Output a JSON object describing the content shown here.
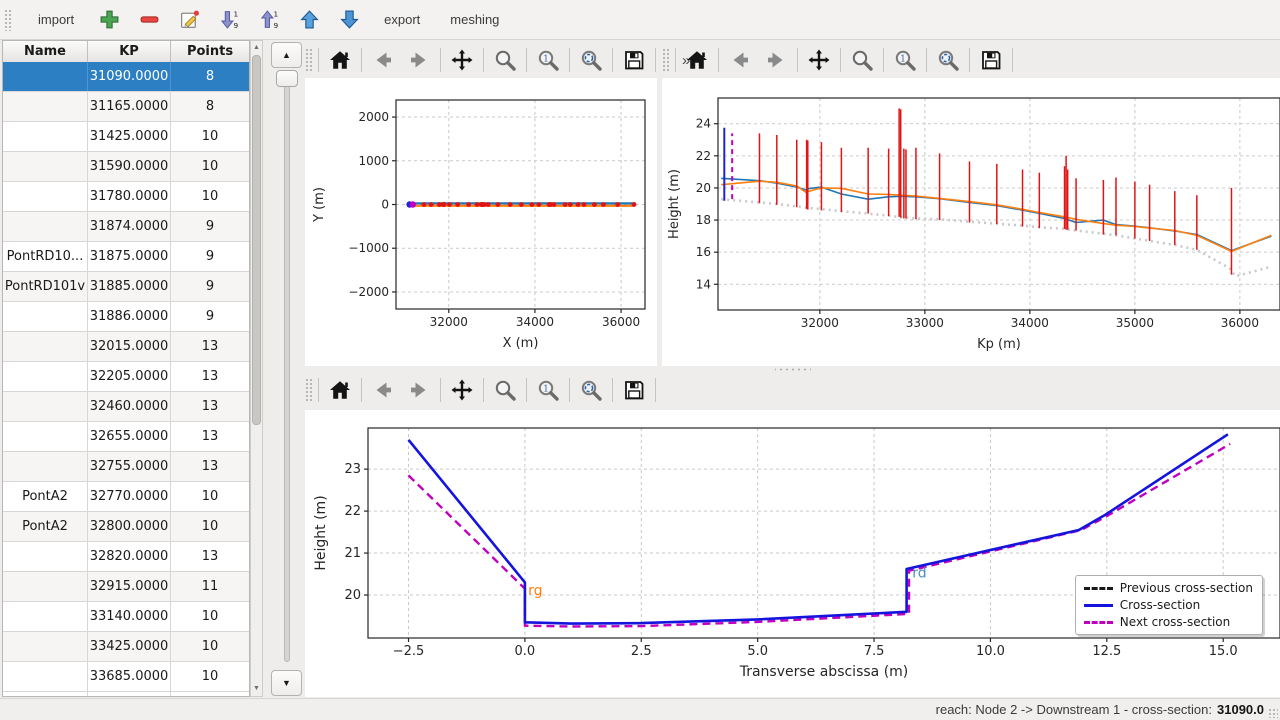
{
  "app_toolbar": {
    "items": [
      {
        "kind": "text",
        "label": "import",
        "name": "import-button"
      },
      {
        "kind": "icon",
        "icon": "add",
        "name": "add-section-button"
      },
      {
        "kind": "icon",
        "icon": "remove",
        "name": "remove-section-button"
      },
      {
        "kind": "icon",
        "icon": "edit",
        "name": "edit-section-button"
      },
      {
        "kind": "icon",
        "icon": "sort-desc",
        "name": "sort-descending-button"
      },
      {
        "kind": "icon",
        "icon": "sort-asc",
        "name": "sort-ascending-button"
      },
      {
        "kind": "icon",
        "icon": "move-up",
        "name": "move-up-button"
      },
      {
        "kind": "icon",
        "icon": "move-down",
        "name": "move-down-button"
      },
      {
        "kind": "text",
        "label": "export",
        "name": "export-button"
      },
      {
        "kind": "text",
        "label": "meshing",
        "name": "meshing-button"
      }
    ]
  },
  "table": {
    "columns": [
      "Name",
      "KP",
      "Points"
    ],
    "selected_row_index": 0,
    "rows": [
      {
        "name": "",
        "kp": "31090.0000",
        "points": "8"
      },
      {
        "name": "",
        "kp": "31165.0000",
        "points": "8"
      },
      {
        "name": "",
        "kp": "31425.0000",
        "points": "10"
      },
      {
        "name": "",
        "kp": "31590.0000",
        "points": "10"
      },
      {
        "name": "",
        "kp": "31780.0000",
        "points": "10"
      },
      {
        "name": "",
        "kp": "31874.0000",
        "points": "9"
      },
      {
        "name": "PontRD10...",
        "kp": "31875.0000",
        "points": "9"
      },
      {
        "name": "PontRD101v",
        "kp": "31885.0000",
        "points": "9"
      },
      {
        "name": "",
        "kp": "31886.0000",
        "points": "9"
      },
      {
        "name": "",
        "kp": "32015.0000",
        "points": "13"
      },
      {
        "name": "",
        "kp": "32205.0000",
        "points": "13"
      },
      {
        "name": "",
        "kp": "32460.0000",
        "points": "13"
      },
      {
        "name": "",
        "kp": "32655.0000",
        "points": "13"
      },
      {
        "name": "",
        "kp": "32755.0000",
        "points": "13"
      },
      {
        "name": "PontA2",
        "kp": "32770.0000",
        "points": "10"
      },
      {
        "name": "PontA2",
        "kp": "32800.0000",
        "points": "10"
      },
      {
        "name": "",
        "kp": "32820.0000",
        "points": "13"
      },
      {
        "name": "",
        "kp": "32915.0000",
        "points": "11"
      },
      {
        "name": "",
        "kp": "33140.0000",
        "points": "10"
      },
      {
        "name": "",
        "kp": "33425.0000",
        "points": "10"
      },
      {
        "name": "",
        "kp": "33685.0000",
        "points": "10"
      }
    ]
  },
  "plot_toolbar_icons": [
    "home",
    "back",
    "forward",
    "pan",
    "zoom",
    "zoom-in-one",
    "zoom-sync",
    "save"
  ],
  "overflow_chevron": "»",
  "statusbar": {
    "reach_text": "reach: Node 2 -> Downstream 1 - cross-section:",
    "cross_section_value": "31090.0"
  },
  "colors": {
    "selection_blue": "#2d7fc4",
    "mpl_blue": "#1f77b4",
    "mpl_orange": "#ff7f0e",
    "red": "#e01414",
    "pure_blue": "#1414dd",
    "magenta": "#c000c0",
    "gray_dotted": "#c9c9c9"
  },
  "chart_data": [
    {
      "id": "plan-view",
      "type": "line",
      "title": "",
      "xlabel": "X (m)",
      "ylabel": "Y (m)",
      "xlim": [
        30775,
        36555
      ],
      "ylim": [
        -2390,
        2390
      ],
      "xticks": [
        32000,
        34000,
        36000
      ],
      "yticks": [
        -2000,
        -1000,
        0,
        1000,
        2000
      ],
      "grid": true,
      "series": [
        {
          "name": "reach-axis-blue",
          "type": "line",
          "color": "#1f77b4",
          "width": 2.2,
          "points": [
            [
              31090,
              25
            ],
            [
              36330,
              25
            ]
          ]
        },
        {
          "name": "reach-axis-orange",
          "type": "line",
          "color": "#ff7f0e",
          "width": 2.2,
          "points": [
            [
              31090,
              -30
            ],
            [
              36300,
              -30
            ]
          ]
        },
        {
          "name": "cross-section-markers",
          "type": "scatter",
          "color": "#e01414",
          "r": 2.4,
          "x": [
            31425,
            31590,
            31780,
            31874,
            31875,
            31885,
            31886,
            32015,
            32205,
            32460,
            32655,
            32755,
            32770,
            32800,
            32820,
            32915,
            33140,
            33425,
            33685,
            33930,
            34090,
            34330,
            34345,
            34360,
            34440,
            34700,
            34820,
            35000,
            35140,
            35380,
            35590,
            35920,
            36300
          ],
          "y": 0
        },
        {
          "name": "current-section-marker",
          "type": "scatter",
          "color": "#2222dd",
          "r": 3.2,
          "x": [
            31090
          ],
          "y": 0
        },
        {
          "name": "next-section-marker",
          "type": "scatter",
          "color": "#c000c0",
          "r": 3.2,
          "x": [
            31165
          ],
          "y": 0
        }
      ]
    },
    {
      "id": "profile-view",
      "type": "line",
      "title": "",
      "xlabel": "Kp (m)",
      "ylabel": "Height (m)",
      "xlim": [
        31030,
        36382
      ],
      "ylim": [
        12.4,
        25.6
      ],
      "xticks": [
        32000,
        33000,
        34000,
        35000,
        36000
      ],
      "yticks": [
        14,
        16,
        18,
        20,
        22,
        24
      ],
      "grid": true,
      "series": [
        {
          "name": "lowest-point",
          "type": "line",
          "color": "#c9c9c9",
          "width": 2.6,
          "dash": "2 4",
          "points": [
            [
              31060,
              19.3
            ],
            [
              31425,
              19.1
            ],
            [
              31590,
              19.0
            ],
            [
              31780,
              18.85
            ],
            [
              31886,
              18.75
            ],
            [
              32015,
              18.68
            ],
            [
              32205,
              18.55
            ],
            [
              32460,
              18.4
            ],
            [
              32655,
              18.27
            ],
            [
              32820,
              18.15
            ],
            [
              32915,
              18.1
            ],
            [
              33140,
              18.05
            ],
            [
              33425,
              17.9
            ],
            [
              33685,
              17.78
            ],
            [
              33930,
              17.65
            ],
            [
              34090,
              17.55
            ],
            [
              34330,
              17.45
            ],
            [
              34440,
              17.35
            ],
            [
              34700,
              17.15
            ],
            [
              34820,
              17.05
            ],
            [
              35000,
              16.85
            ],
            [
              35140,
              16.7
            ],
            [
              35380,
              16.45
            ],
            [
              35590,
              16.15
            ],
            [
              35900,
              15.0
            ],
            [
              35960,
              14.5
            ],
            [
              36300,
              15.1
            ]
          ]
        },
        {
          "name": "left-bank",
          "type": "line",
          "color": "#1f77b4",
          "width": 1.6,
          "points": [
            [
              31060,
              20.6
            ],
            [
              31425,
              20.45
            ],
            [
              31590,
              20.3
            ],
            [
              31780,
              20.05
            ],
            [
              31874,
              19.85
            ],
            [
              31886,
              19.95
            ],
            [
              32015,
              20.05
            ],
            [
              32205,
              19.62
            ],
            [
              32460,
              19.3
            ],
            [
              32655,
              19.45
            ],
            [
              32770,
              19.48
            ],
            [
              32915,
              19.45
            ],
            [
              33140,
              19.33
            ],
            [
              33425,
              19.1
            ],
            [
              33685,
              18.9
            ],
            [
              33930,
              18.62
            ],
            [
              34090,
              18.42
            ],
            [
              34330,
              18.1
            ],
            [
              34440,
              17.85
            ],
            [
              34700,
              18.0
            ],
            [
              34820,
              17.72
            ],
            [
              35000,
              17.62
            ],
            [
              35140,
              17.52
            ],
            [
              35380,
              17.32
            ],
            [
              35590,
              17.1
            ],
            [
              35920,
              16.1
            ],
            [
              36300,
              17.0
            ]
          ]
        },
        {
          "name": "right-bank",
          "type": "line",
          "color": "#ff7f0e",
          "width": 1.6,
          "points": [
            [
              31060,
              20.2
            ],
            [
              31425,
              20.42
            ],
            [
              31590,
              20.35
            ],
            [
              31780,
              20.12
            ],
            [
              31874,
              19.7
            ],
            [
              31886,
              19.78
            ],
            [
              32015,
              20.0
            ],
            [
              32205,
              19.98
            ],
            [
              32460,
              19.62
            ],
            [
              32655,
              19.6
            ],
            [
              32770,
              19.55
            ],
            [
              32915,
              19.5
            ],
            [
              33140,
              19.35
            ],
            [
              33425,
              19.15
            ],
            [
              33685,
              18.95
            ],
            [
              33930,
              18.67
            ],
            [
              34090,
              18.47
            ],
            [
              34330,
              18.2
            ],
            [
              34440,
              18.05
            ],
            [
              34700,
              17.78
            ],
            [
              34820,
              17.68
            ],
            [
              35000,
              17.6
            ],
            [
              35140,
              17.5
            ],
            [
              35380,
              17.35
            ],
            [
              35590,
              17.05
            ],
            [
              35920,
              16.05
            ],
            [
              36300,
              17.05
            ]
          ]
        },
        {
          "name": "section-extents",
          "type": "vlines",
          "color": "#e01414",
          "width": 1.5,
          "lines": [
            [
              31425,
              19.05,
              23.4
            ],
            [
              31590,
              18.95,
              23.3
            ],
            [
              31780,
              18.8,
              23.0
            ],
            [
              31874,
              18.7,
              23.0
            ],
            [
              31885,
              18.65,
              22.95
            ],
            [
              32015,
              18.6,
              22.85
            ],
            [
              32205,
              18.5,
              22.5
            ],
            [
              32460,
              18.4,
              22.5
            ],
            [
              32655,
              18.25,
              22.45
            ],
            [
              32755,
              18.2,
              24.95
            ],
            [
              32770,
              18.15,
              24.9
            ],
            [
              32800,
              18.1,
              22.45
            ],
            [
              32820,
              18.1,
              22.4
            ],
            [
              32915,
              18.05,
              22.5
            ],
            [
              33140,
              18.0,
              22.15
            ],
            [
              33425,
              17.85,
              21.65
            ],
            [
              33685,
              17.75,
              21.5
            ],
            [
              33930,
              17.6,
              21.15
            ],
            [
              34090,
              17.5,
              20.95
            ],
            [
              34330,
              17.45,
              21.35
            ],
            [
              34345,
              17.4,
              22.0
            ],
            [
              34360,
              17.4,
              21.15
            ],
            [
              34440,
              17.35,
              20.6
            ],
            [
              34700,
              17.1,
              20.5
            ],
            [
              34820,
              17.05,
              20.65
            ],
            [
              35000,
              16.85,
              20.4
            ],
            [
              35140,
              16.7,
              20.2
            ],
            [
              35380,
              16.45,
              19.8
            ],
            [
              35590,
              16.15,
              19.55
            ],
            [
              35920,
              14.6,
              20.0
            ]
          ]
        },
        {
          "name": "current-section-line",
          "type": "vlines",
          "color": "#2222cc",
          "width": 2,
          "lines": [
            [
              31090,
              19.2,
              23.75
            ]
          ]
        },
        {
          "name": "next-section-line",
          "type": "vlines",
          "color": "#c000c0",
          "width": 2,
          "dash": "5 4",
          "lines": [
            [
              31165,
              19.3,
              23.4
            ]
          ]
        }
      ]
    },
    {
      "id": "cross-section-view",
      "type": "line",
      "title": "",
      "xlabel": "Transverse abscissa (m)",
      "ylabel": "Height (m)",
      "xlim": [
        -3.37,
        16.22
      ],
      "ylim": [
        18.976,
        23.98
      ],
      "xticks": [
        -2.5,
        0.0,
        2.5,
        5.0,
        7.5,
        10.0,
        12.5,
        15.0
      ],
      "yticks": [
        20,
        21,
        22,
        23
      ],
      "grid": true,
      "series": [
        {
          "name": "previous-cross-section",
          "type": "line",
          "color": "#1a1a1a",
          "width": 2.4,
          "dash": "8 5",
          "points": []
        },
        {
          "name": "next-cross-section",
          "type": "line",
          "color": "#c000c0",
          "width": 2.4,
          "dash": "8 5",
          "points": [
            [
              -2.5,
              22.85
            ],
            [
              0,
              20.15
            ],
            [
              0,
              19.27
            ],
            [
              1.0,
              19.25
            ],
            [
              2.5,
              19.26
            ],
            [
              5.0,
              19.36
            ],
            [
              8.25,
              19.55
            ],
            [
              8.25,
              20.58
            ],
            [
              11.95,
              21.55
            ],
            [
              12.5,
              21.88
            ],
            [
              15.15,
              23.6
            ]
          ]
        },
        {
          "name": "cross-section",
          "type": "line",
          "color": "#1414dd",
          "width": 2.6,
          "points": [
            [
              -2.5,
              23.7
            ],
            [
              0,
              20.3
            ],
            [
              0,
              19.35
            ],
            [
              1.0,
              19.32
            ],
            [
              2.5,
              19.33
            ],
            [
              5.0,
              19.42
            ],
            [
              8.2,
              19.6
            ],
            [
              8.2,
              20.62
            ],
            [
              11.9,
              21.55
            ],
            [
              12.45,
              21.9
            ],
            [
              15.1,
              23.83
            ]
          ]
        }
      ],
      "annotations": [
        {
          "text": "rg",
          "x": 0.07,
          "y": 20.0,
          "color": "#ff7f0e"
        },
        {
          "text": "rd",
          "x": 8.32,
          "y": 20.42,
          "color": "#4a90c2"
        }
      ],
      "legend": [
        {
          "label": "Previous cross-section",
          "color": "#1a1a1a",
          "dash": true
        },
        {
          "label": "Cross-section",
          "color": "#1414dd",
          "dash": false
        },
        {
          "label": "Next cross-section",
          "color": "#c000c0",
          "dash": true
        }
      ]
    }
  ]
}
